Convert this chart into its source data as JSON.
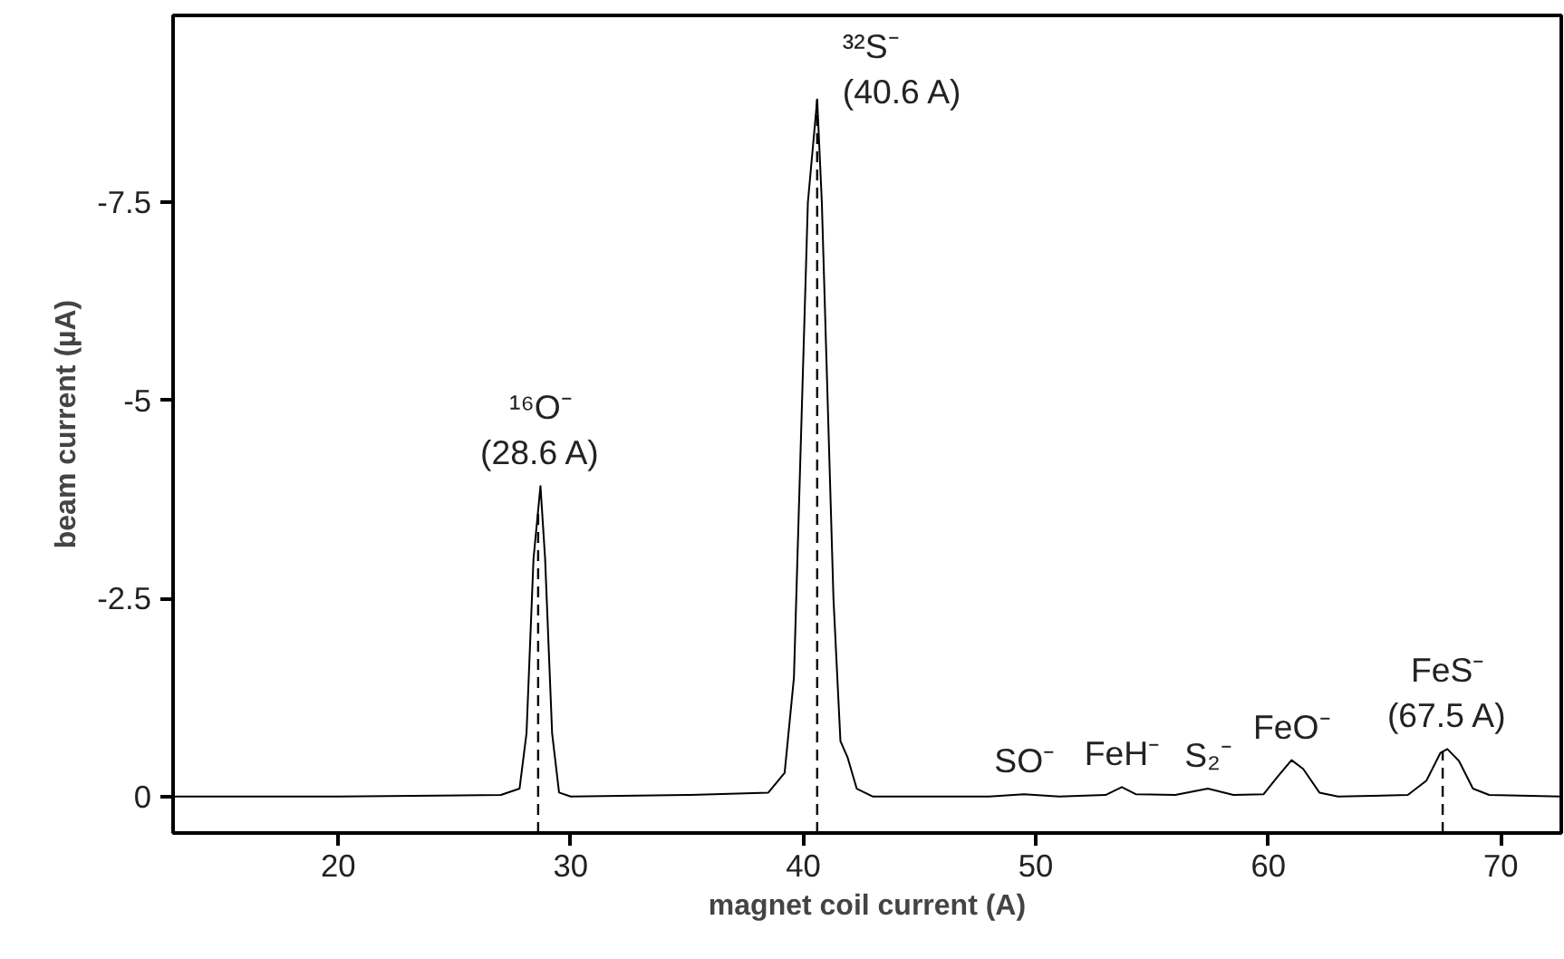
{
  "chart_data": {
    "type": "line",
    "xlabel": "magnet coil current (A)",
    "ylabel": "beam current (µA)",
    "x": [
      12.9,
      20,
      27,
      27.8,
      28.1,
      28.4,
      28.7,
      28.9,
      29.2,
      29.5,
      30,
      35,
      38.5,
      39.2,
      39.6,
      39.9,
      40.2,
      40.6,
      40.8,
      41,
      41.3,
      41.6,
      41.9,
      42.3,
      43,
      48,
      49.5,
      51,
      53,
      53.7,
      54.3,
      56,
      57.4,
      58.5,
      59.8,
      60.4,
      61,
      61.5,
      62.2,
      63,
      66,
      66.8,
      67.4,
      67.7,
      68.2,
      68.8,
      69.5,
      72.6
    ],
    "series": [
      {
        "color": "#000000",
        "values": [
          0,
          0,
          -0.02,
          -0.1,
          -0.8,
          -3.0,
          -3.92,
          -3.0,
          -0.8,
          -0.05,
          0,
          -0.02,
          -0.05,
          -0.3,
          -1.5,
          -4.5,
          -7.5,
          -8.8,
          -7.5,
          -5.5,
          -2.5,
          -0.7,
          -0.5,
          -0.1,
          0,
          0,
          -0.03,
          0,
          -0.02,
          -0.12,
          -0.03,
          -0.02,
          -0.1,
          -0.02,
          -0.03,
          -0.25,
          -0.46,
          -0.35,
          -0.05,
          0,
          -0.02,
          -0.2,
          -0.55,
          -0.6,
          -0.45,
          -0.1,
          -0.02,
          0
        ]
      }
    ],
    "xlim": [
      12.9,
      72.6
    ],
    "ylim": [
      0.46,
      -9.86
    ],
    "xticks": [
      20,
      30,
      40,
      50,
      60,
      70
    ],
    "yticks": [
      -7.5,
      -5,
      -2.5,
      0
    ],
    "ref_lines": [
      {
        "axis": "x",
        "value": 28.6,
        "line_style": "dashed"
      },
      {
        "axis": "x",
        "value": 40.6,
        "line_style": "dashed"
      },
      {
        "axis": "x",
        "value": 67.5,
        "line_style": "dashed"
      }
    ],
    "annotations": [
      {
        "text": "¹⁶O⁻\n(28.6 A)",
        "x": 28.7,
        "y": -3.92
      },
      {
        "text": "³²S⁻\n(40.6 A)",
        "x": 40.6,
        "y": -8.8
      },
      {
        "text": "SO⁻",
        "x": 49.5,
        "y": -0.03
      },
      {
        "text": "FeH⁻",
        "x": 53.7,
        "y": -0.12
      },
      {
        "text": "S₂⁻",
        "x": 57.4,
        "y": -0.1
      },
      {
        "text": "FeO⁻",
        "x": 61,
        "y": -0.46
      },
      {
        "text": "FeS⁻\n(67.5 A)",
        "x": 67.7,
        "y": -0.6
      }
    ],
    "grid": false,
    "line_style": "solid"
  }
}
